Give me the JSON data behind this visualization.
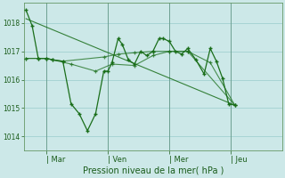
{
  "background_color": "#cce8e8",
  "grid_color": "#99cccc",
  "line_color": "#1a6e1a",
  "tick_label_color": "#1a5c1a",
  "xlabel": "Pression niveau de la mer( hPa )",
  "ylim": [
    1013.5,
    1018.7
  ],
  "yticks": [
    1014,
    1015,
    1016,
    1017,
    1018
  ],
  "xtick_labels": [
    "| Mar",
    "| Ven",
    "| Mer",
    "| Jeu"
  ],
  "xtick_positions": [
    1,
    4,
    7,
    10
  ],
  "xlim": [
    -0.1,
    12.5
  ],
  "series_main": [
    [
      0,
      1018.45
    ],
    [
      0.3,
      1017.9
    ],
    [
      0.6,
      1016.75
    ],
    [
      1.0,
      1016.75
    ],
    [
      1.3,
      1016.7
    ],
    [
      1.8,
      1016.65
    ],
    [
      2.2,
      1015.15
    ],
    [
      2.6,
      1014.8
    ],
    [
      3.0,
      1014.2
    ],
    [
      3.4,
      1014.8
    ],
    [
      3.8,
      1016.3
    ],
    [
      4.0,
      1016.3
    ],
    [
      4.2,
      1016.6
    ],
    [
      4.5,
      1017.45
    ],
    [
      4.7,
      1017.25
    ],
    [
      5.0,
      1016.7
    ],
    [
      5.3,
      1016.55
    ],
    [
      5.6,
      1017.0
    ],
    [
      5.9,
      1016.85
    ],
    [
      6.2,
      1017.0
    ],
    [
      6.5,
      1017.45
    ],
    [
      6.7,
      1017.45
    ],
    [
      7.0,
      1017.35
    ],
    [
      7.3,
      1017.0
    ],
    [
      7.6,
      1016.9
    ],
    [
      7.9,
      1017.1
    ],
    [
      8.3,
      1016.7
    ],
    [
      8.7,
      1016.2
    ],
    [
      9.0,
      1017.1
    ],
    [
      9.3,
      1016.65
    ],
    [
      9.6,
      1016.05
    ],
    [
      9.9,
      1015.15
    ],
    [
      10.2,
      1015.1
    ]
  ],
  "series_flat": [
    [
      0,
      1016.75
    ],
    [
      0.6,
      1016.75
    ],
    [
      1.0,
      1016.75
    ],
    [
      1.3,
      1016.7
    ],
    [
      1.8,
      1016.65
    ],
    [
      3.8,
      1016.8
    ],
    [
      4.5,
      1016.9
    ],
    [
      5.3,
      1016.95
    ],
    [
      6.2,
      1017.0
    ],
    [
      7.0,
      1017.0
    ],
    [
      7.9,
      1017.0
    ],
    [
      10.2,
      1015.1
    ]
  ],
  "series_mid": [
    [
      0,
      1016.75
    ],
    [
      1.0,
      1016.75
    ],
    [
      2.2,
      1016.55
    ],
    [
      3.4,
      1016.3
    ],
    [
      4.2,
      1016.55
    ],
    [
      5.3,
      1016.5
    ],
    [
      6.2,
      1016.85
    ],
    [
      7.0,
      1017.0
    ],
    [
      7.9,
      1017.0
    ],
    [
      9.0,
      1016.6
    ],
    [
      10.2,
      1015.1
    ]
  ],
  "trend_line": [
    [
      0,
      1018.15
    ],
    [
      10.2,
      1015.1
    ]
  ]
}
